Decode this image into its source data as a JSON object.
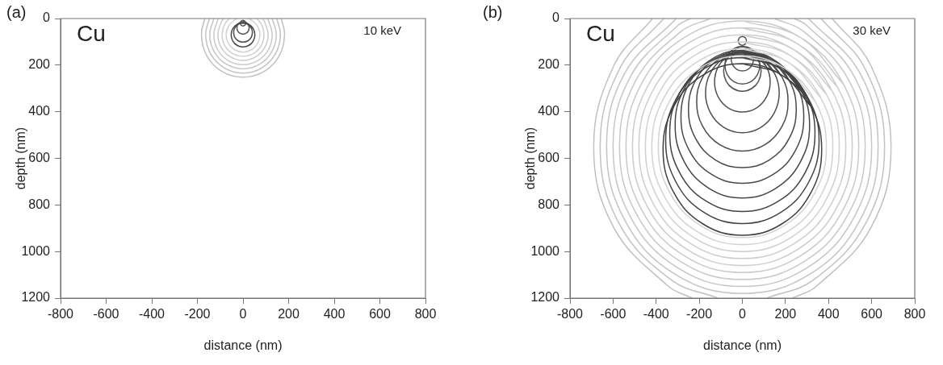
{
  "chart_data": [
    {
      "type": "line",
      "title": "(a)",
      "xlabel": "distance (nm)",
      "ylabel": "depth (nm)",
      "annotations": [
        "Cu",
        "10 keV"
      ],
      "xlim": [
        -800,
        800
      ],
      "xticks": [
        -800,
        -600,
        -400,
        -200,
        0,
        200,
        400,
        600,
        800
      ],
      "ylim": [
        1200,
        0
      ],
      "yticks": [
        0,
        200,
        400,
        600,
        800,
        1000,
        1200
      ],
      "grid": false,
      "legend": false,
      "marker": "none",
      "series": [
        {
          "color": "#c0c0c0",
          "x": [
            168,
            182,
            158,
            91,
            0,
            -91,
            -158,
            -182,
            -168
          ],
          "values": [
            0,
            70,
            161,
            228,
            252,
            228,
            161,
            70,
            0
          ]
        },
        {
          "color": "#c3c3c3",
          "x": [
            148,
            164,
            142,
            82,
            0,
            -82,
            -142,
            -164,
            -148
          ],
          "values": [
            0,
            70,
            152,
            212,
            234,
            212,
            152,
            70,
            0
          ]
        },
        {
          "color": "#c6c6c6",
          "x": [
            128,
            146,
            126,
            73,
            0,
            -73,
            -126,
            -146,
            -128
          ],
          "values": [
            0,
            70,
            143,
            196,
            216,
            196,
            143,
            70,
            0
          ]
        },
        {
          "color": "#c9c9c9",
          "x": [
            107,
            111,
            128,
            111,
            64,
            0,
            -64,
            -111,
            -128,
            -111,
            -107
          ],
          "values": [
            0,
            6,
            70,
            134,
            181,
            198,
            181,
            134,
            70,
            6,
            0
          ]
        },
        {
          "color": "#cccccc",
          "x": [
            85,
            95,
            110,
            95,
            55,
            0,
            -55,
            -95,
            -110,
            -95,
            -85
          ],
          "values": [
            0,
            15,
            70,
            125,
            165,
            180,
            165,
            125,
            70,
            15,
            0
          ]
        },
        {
          "color": "#cfcfcf",
          "x": [
            60,
            80,
            92,
            80,
            46,
            0,
            -46,
            -80,
            -92,
            -80,
            -60
          ],
          "values": [
            0,
            24,
            70,
            116,
            150,
            162,
            150,
            116,
            70,
            24,
            0
          ]
        },
        {
          "color": "#d2d2d2",
          "x": [
            24,
            37,
            64,
            74,
            64,
            37,
            0,
            -37,
            -64,
            -74,
            -64,
            -37,
            -24
          ],
          "values": [
            0,
            6,
            33,
            70,
            107,
            134,
            144,
            134,
            107,
            70,
            33,
            6,
            0
          ]
        },
        {
          "color": "#484848",
          "x": [
            0,
            26,
            45,
            52,
            45,
            26,
            0,
            -26,
            -45,
            -52,
            -45,
            -26,
            0,
            26,
            45
          ],
          "values": [
            18,
            25,
            44,
            70,
            96,
            115,
            122,
            115,
            96,
            70,
            44,
            25,
            18,
            25,
            44
          ]
        },
        {
          "color": "#4e4e4e",
          "x": [
            0,
            21,
            36,
            41,
            36,
            21,
            0,
            -21,
            -36,
            -41,
            -36,
            -21,
            0,
            21,
            36
          ],
          "values": [
            19,
            25,
            40,
            60,
            81,
            96,
            101,
            96,
            81,
            60,
            40,
            25,
            19,
            25,
            40
          ]
        },
        {
          "color": "#545454",
          "x": [
            0,
            14,
            23,
            27,
            23,
            14,
            0,
            -14,
            -23,
            -27,
            -23,
            -14,
            0,
            14,
            23
          ],
          "values": [
            13,
            17,
            27,
            40,
            54,
            63,
            67,
            63,
            54,
            40,
            27,
            17,
            13,
            17,
            27
          ]
        },
        {
          "color": "#5a5a5a",
          "x": [
            0,
            6,
            10,
            12,
            10,
            6,
            0,
            -6,
            -10,
            -12,
            -10,
            -6,
            0,
            6,
            10
          ],
          "values": [
            8,
            10,
            14,
            20,
            26,
            30,
            32,
            30,
            26,
            20,
            14,
            10,
            8,
            10,
            14
          ]
        }
      ]
    },
    {
      "type": "line",
      "title": "(b)",
      "xlabel": "distance (nm)",
      "ylabel": "depth (nm)",
      "annotations": [
        "Cu",
        "30 keV"
      ],
      "xlim": [
        -800,
        800
      ],
      "xticks": [
        -800,
        -600,
        -400,
        -200,
        0,
        200,
        400,
        600,
        800
      ],
      "ylim": [
        1200,
        0
      ],
      "yticks": [
        0,
        200,
        400,
        600,
        800,
        1000,
        1200
      ],
      "grid": false,
      "legend": false,
      "marker": "none",
      "series": [
        {
          "color": "#c0c0c0",
          "x": [
            417,
            598,
            690,
            598,
            345,
            232,
            0,
            -232,
            -345,
            -598,
            -690,
            -598,
            -417
          ],
          "values": [
            0,
            205,
            550,
            895,
            1148,
            1200,
            null,
            1200,
            1148,
            895,
            550,
            205,
            0
          ]
        },
        {
          "color": "#c2c2c2",
          "x": [
            365,
            572,
            660,
            572,
            330,
            114,
            0,
            -114,
            -330,
            -572,
            -660,
            -572,
            -365
          ],
          "values": [
            0,
            220,
            550,
            880,
            1122,
            1200,
            null,
            1200,
            1122,
            880,
            550,
            220,
            0
          ]
        },
        {
          "color": "#c4c4c4",
          "x": [
            307,
            546,
            630,
            546,
            315,
            0,
            -315,
            -546,
            -630,
            -546,
            -307
          ],
          "values": [
            0,
            235,
            550,
            865,
            1096,
            1180,
            1096,
            865,
            550,
            235,
            0
          ]
        },
        {
          "color": "#c6c6c6",
          "x": [
            240,
            300,
            520,
            600,
            520,
            300,
            0,
            -300,
            -520,
            -600,
            -520,
            -300,
            -240
          ],
          "values": [
            0,
            30,
            250,
            550,
            850,
            1070,
            1150,
            1070,
            850,
            550,
            250,
            30,
            0
          ]
        },
        {
          "color": "#c8c8c7",
          "x": [
            150,
            285,
            494,
            570,
            494,
            285,
            0,
            -285,
            -494,
            -570,
            -494,
            -285,
            -150
          ],
          "values": [
            0,
            56,
            265,
            550,
            835,
            1044,
            1120,
            1044,
            835,
            550,
            265,
            56,
            0
          ]
        },
        {
          "color": "#cacaca",
          "x": [
            0,
            270,
            468,
            540,
            468,
            270,
            0,
            -270,
            -468,
            -540,
            -468,
            -270,
            0,
            270,
            468
          ],
          "values": [
            10,
            82,
            280,
            550,
            820,
            1018,
            1090,
            1018,
            820,
            550,
            280,
            82,
            10,
            82,
            280
          ]
        },
        {
          "color": "#cccccc",
          "x": [
            0,
            255,
            442,
            510,
            442,
            255,
            0,
            -255,
            -442,
            -510,
            -442,
            -255,
            0,
            255,
            442
          ],
          "values": [
            40,
            108,
            295,
            550,
            805,
            992,
            1060,
            992,
            805,
            550,
            295,
            108,
            40,
            108,
            295
          ]
        },
        {
          "color": "#cecece",
          "x": [
            0,
            240,
            416,
            480,
            416,
            240,
            0,
            -240,
            -416,
            -480,
            -416,
            -240,
            0,
            240,
            416
          ],
          "values": [
            70,
            134,
            310,
            550,
            790,
            966,
            1030,
            966,
            790,
            550,
            310,
            134,
            70,
            134,
            310
          ]
        },
        {
          "color": "#d0d0d0",
          "x": [
            0,
            225,
            390,
            450,
            390,
            225,
            0,
            -225,
            -390,
            -450,
            -390,
            -225,
            0,
            225,
            390
          ],
          "values": [
            100,
            160,
            325,
            550,
            775,
            940,
            1000,
            940,
            775,
            550,
            325,
            160,
            100,
            160,
            325
          ]
        },
        {
          "color": "#d2d2d2",
          "x": [
            0,
            210,
            364,
            420,
            364,
            210,
            0,
            -210,
            -364,
            -420,
            -364,
            -210,
            0,
            210,
            364
          ],
          "values": [
            130,
            186,
            340,
            550,
            760,
            914,
            970,
            914,
            760,
            550,
            340,
            186,
            130,
            186,
            340
          ]
        },
        {
          "color": "#d4d4d4",
          "x": [
            0,
            195,
            338,
            390,
            338,
            195,
            0,
            -195,
            -338,
            -390,
            -338,
            -195,
            0,
            195,
            338
          ],
          "values": [
            160,
            212,
            355,
            550,
            745,
            888,
            940,
            888,
            745,
            550,
            355,
            212,
            160,
            212,
            355
          ]
        },
        {
          "color": "#404040",
          "x": [
            0,
            184,
            319,
            368,
            319,
            184,
            0,
            -184,
            -319,
            -368,
            -319,
            -184,
            0,
            184,
            319
          ],
          "values": [
            194,
            243,
            378,
            562,
            746,
            881,
            930,
            881,
            746,
            562,
            378,
            243,
            194,
            243,
            378
          ]
        },
        {
          "color": "#424242",
          "x": [
            0,
            178,
            308,
            356,
            308,
            178,
            0,
            -178,
            -308,
            -356,
            -308,
            -178,
            0,
            178,
            308
          ],
          "values": [
            168,
            216,
            346,
            524,
            702,
            832,
            880,
            832,
            702,
            524,
            346,
            216,
            168,
            216,
            346
          ]
        },
        {
          "color": "#444444",
          "x": [
            0,
            169,
            292,
            337,
            292,
            169,
            0,
            -169,
            -292,
            -337,
            -292,
            -169,
            0,
            169,
            292
          ],
          "values": [
            154,
            199,
            322,
            491,
            660,
            783,
            828,
            783,
            660,
            491,
            322,
            199,
            154,
            199,
            322
          ]
        },
        {
          "color": "#464646",
          "x": [
            0,
            156,
            270,
            312,
            270,
            156,
            0,
            -156,
            -270,
            -312,
            -270,
            -156,
            0,
            156,
            270
          ],
          "values": [
            146,
            188,
            302,
            458,
            614,
            728,
            770,
            728,
            614,
            458,
            302,
            188,
            146,
            188,
            302
          ]
        },
        {
          "color": "#484848",
          "x": [
            0,
            143,
            247,
            285,
            247,
            143,
            0,
            -143,
            -247,
            -285,
            -247,
            -143,
            0,
            143,
            247
          ],
          "values": [
            137,
            175,
            279,
            422,
            565,
            669,
            707,
            669,
            565,
            422,
            279,
            175,
            137,
            175,
            279
          ]
        },
        {
          "color": "#4a4a4a",
          "x": [
            0,
            125,
            217,
            250,
            217,
            125,
            0,
            -125,
            -217,
            -250,
            -217,
            -125,
            0,
            125,
            217
          ],
          "values": [
            140,
            173,
            265,
            390,
            515,
            607,
            640,
            607,
            515,
            390,
            265,
            173,
            140,
            173,
            265
          ]
        },
        {
          "color": "#4c4c4c",
          "x": [
            0,
            106,
            184,
            212,
            184,
            106,
            0,
            -106,
            -184,
            -212,
            -184,
            -106,
            0,
            106,
            184
          ],
          "values": [
            145,
            173,
            251,
            357,
            463,
            541,
            569,
            541,
            463,
            357,
            251,
            173,
            145,
            173,
            251
          ]
        },
        {
          "color": "#4e4e4e",
          "x": [
            0,
            86,
            148,
            171,
            148,
            86,
            0,
            -86,
            -148,
            -171,
            -148,
            -86,
            0,
            86,
            148
          ],
          "values": [
            148,
            171,
            233,
            319,
            405,
            467,
            490,
            467,
            405,
            319,
            233,
            171,
            148,
            171,
            233
          ]
        },
        {
          "color": "#505050",
          "x": [
            0,
            65,
            112,
            129,
            112,
            65,
            0,
            -65,
            -112,
            -129,
            -112,
            -65,
            0,
            65,
            112
          ],
          "values": [
            143,
            160,
            207,
            272,
            337,
            384,
            401,
            384,
            337,
            272,
            207,
            160,
            143,
            160,
            207
          ]
        },
        {
          "color": "#525252",
          "x": [
            0,
            44,
            75,
            87,
            75,
            44,
            0,
            -44,
            -75,
            -87,
            -75,
            -44,
            0,
            44,
            75
          ],
          "values": [
            138,
            150,
            181,
            225,
            269,
            300,
            312,
            300,
            269,
            225,
            181,
            150,
            138,
            150,
            181
          ]
        },
        {
          "color": "#545454",
          "x": [
            0,
            41,
            70,
            81,
            70,
            41,
            0,
            -41,
            -70,
            -81,
            -70,
            -41,
            0,
            41,
            70
          ],
          "values": [
            119,
            130,
            159,
            200,
            241,
            270,
            281,
            270,
            241,
            200,
            159,
            130,
            119,
            130,
            159
          ]
        },
        {
          "color": "#565656",
          "x": [
            0,
            26,
            45,
            52,
            45,
            26,
            0,
            -26,
            -45,
            -52,
            -45,
            -26,
            0,
            26,
            45
          ],
          "values": [
            121,
            128,
            147,
            173,
            199,
            218,
            225,
            218,
            199,
            173,
            147,
            128,
            121,
            128,
            147
          ]
        },
        {
          "color": "#585858",
          "x": [
            0,
            10,
            16,
            19,
            16,
            10,
            0,
            -10,
            -16,
            -19,
            -16,
            -10,
            0,
            10,
            16
          ],
          "values": [
            77,
            80,
            86,
            96,
            106,
            112,
            115,
            112,
            106,
            96,
            86,
            80,
            77,
            80,
            86
          ]
        }
      ]
    }
  ]
}
